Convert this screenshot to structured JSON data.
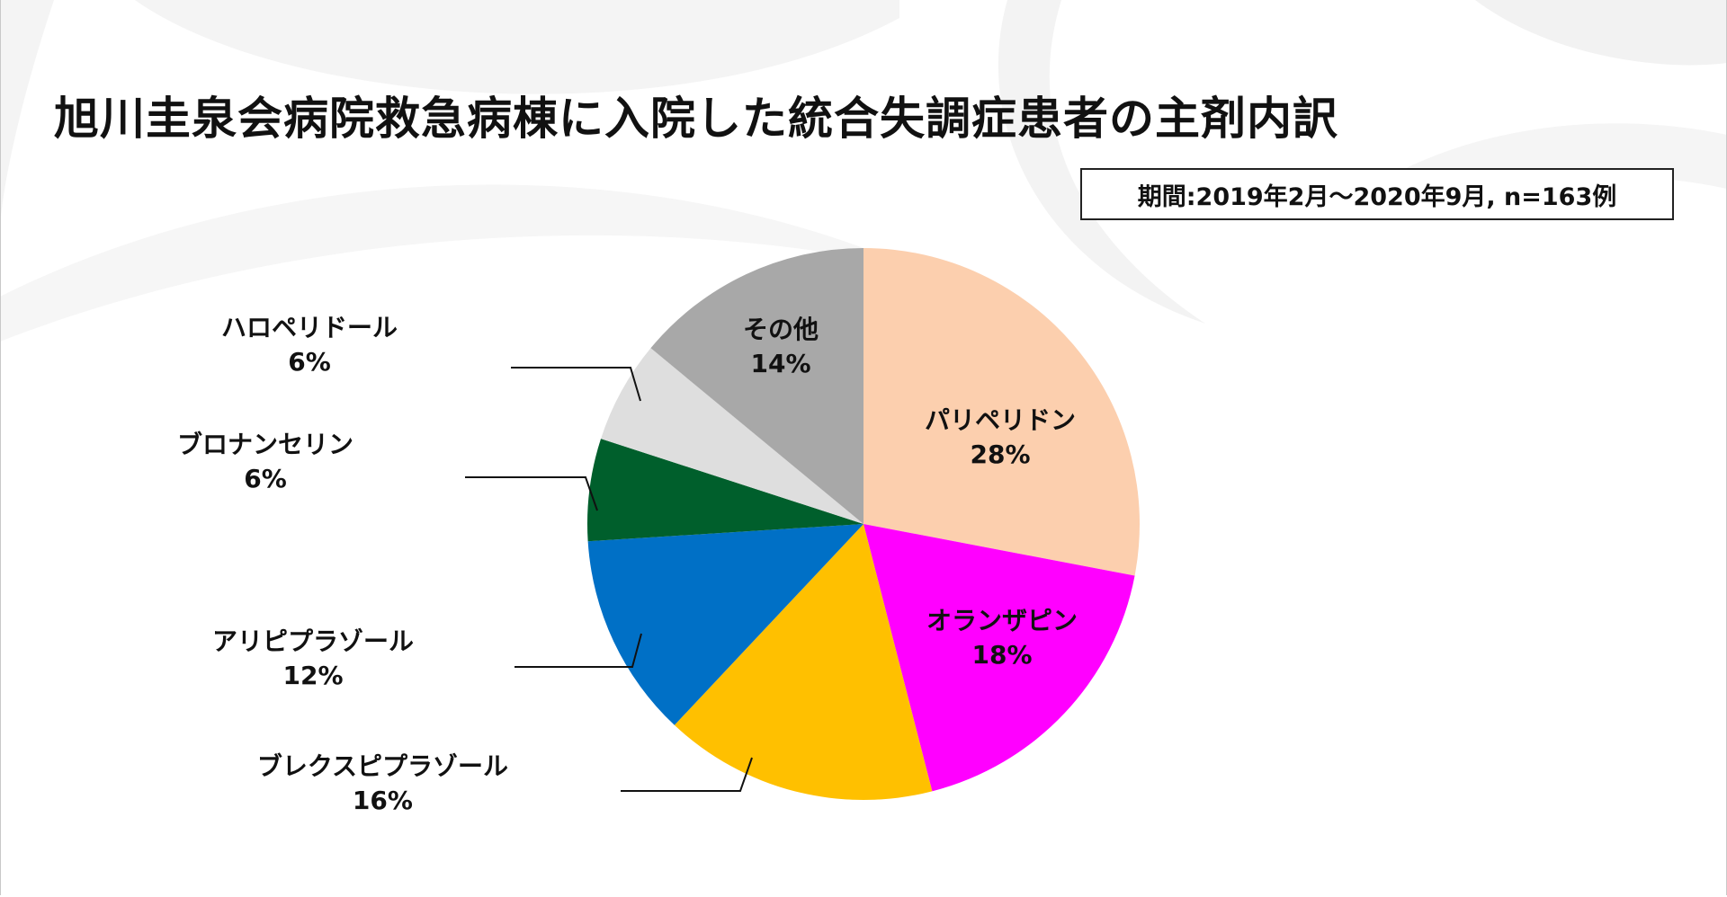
{
  "title": "旭川圭泉会病院救急病棟に入院した統合失調症患者の主剤内訳",
  "period_note": "期間:2019年2月〜2020年9月, n=163例",
  "chart_data": {
    "type": "pie",
    "title": "旭川圭泉会病院救急病棟に入院した統合失調症患者の主剤内訳",
    "start": "12 o'clock",
    "direction": "clockwise",
    "unit": "%",
    "slices": [
      {
        "label": "パリペリドン",
        "value": 28,
        "value_label": "28%",
        "color": "#FCCFAE",
        "label_placement": "inside"
      },
      {
        "label": "オランザピン",
        "value": 18,
        "value_label": "18%",
        "color": "#FF00FF",
        "label_placement": "inside"
      },
      {
        "label": "ブレクスピプラゾール",
        "value": 16,
        "value_label": "16%",
        "color": "#FFC000",
        "label_placement": "outside-left"
      },
      {
        "label": "アリピプラゾール",
        "value": 12,
        "value_label": "12%",
        "color": "#0070C6",
        "label_placement": "outside-left"
      },
      {
        "label": "ブロナンセリン",
        "value": 6,
        "value_label": "6%",
        "color": "#005F2C",
        "label_placement": "outside-left"
      },
      {
        "label": "ハロペリドール",
        "value": 6,
        "value_label": "6%",
        "color": "#DEDEDE",
        "label_placement": "outside-left"
      },
      {
        "label": "その他",
        "value": 14,
        "value_label": "14%",
        "color": "#A8A8A8",
        "label_placement": "inside"
      }
    ]
  }
}
